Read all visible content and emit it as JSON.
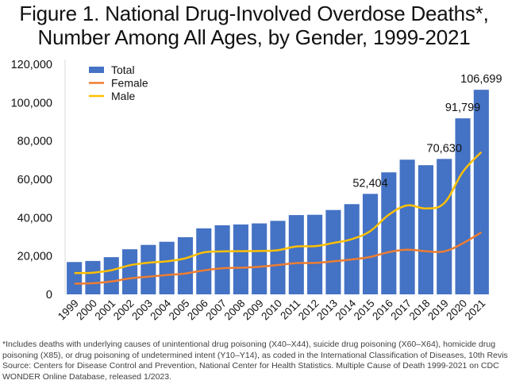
{
  "title_lines": [
    "Figure 1. National Drug-Involved Overdose Deaths*,",
    "Number Among All Ages, by Gender, 1999-2021"
  ],
  "footnote_lines": [
    "*Includes deaths with underlying causes of unintentional drug poisoning (X40–X44), suicide drug poisoning (X60–X64), homicide drug",
    "poisoning (X85), or drug poisoning of undetermined intent (Y10–Y14), as coded in the International Classification of Diseases, 10th Revision.",
    "Source: Centers for Disease Control and Prevention, National Center for Health Statistics. Multiple Cause of Death 1999-2021 on CDC",
    "WONDER Online Database, released 1/2023."
  ],
  "colors": {
    "total": "#4472C4",
    "female": "#ED7D31",
    "male": "#FFC000",
    "axis": "#D9D9D9"
  },
  "chart_data": {
    "type": "bar",
    "title": "Figure 1. National Drug-Involved Overdose Deaths*, Number Among All Ages, by Gender, 1999-2021",
    "xlabel": "",
    "ylabel": "",
    "ylim": [
      0,
      120000
    ],
    "yticks": [
      0,
      20000,
      40000,
      60000,
      80000,
      100000,
      120000
    ],
    "ytick_labels": [
      "0",
      "20,000",
      "40,000",
      "60,000",
      "80,000",
      "100,000",
      "120,000"
    ],
    "grid": false,
    "legend_position": "top-left",
    "categories": [
      "1999",
      "2000",
      "2001",
      "2002",
      "2003",
      "2004",
      "2005",
      "2006",
      "2007",
      "2008",
      "2009",
      "2010",
      "2011",
      "2012",
      "2013",
      "2014",
      "2015",
      "2016",
      "2017",
      "2018",
      "2019",
      "2020",
      "2021"
    ],
    "series": [
      {
        "name": "Total",
        "kind": "bar",
        "values": [
          16849,
          17415,
          19394,
          23518,
          25785,
          27424,
          29813,
          34425,
          36010,
          36450,
          37004,
          38329,
          41340,
          41502,
          43982,
          47055,
          52404,
          63632,
          70237,
          67367,
          70630,
          91799,
          106699
        ]
      },
      {
        "name": "Female",
        "kind": "line",
        "values": [
          5600,
          5800,
          6700,
          8300,
          9200,
          10100,
          10900,
          12500,
          13600,
          13900,
          14400,
          15300,
          16300,
          16400,
          17200,
          18200,
          19500,
          22000,
          23300,
          22500,
          22400,
          26600,
          32300
        ]
      },
      {
        "name": "Male",
        "kind": "line",
        "values": [
          11100,
          11300,
          12600,
          15200,
          16500,
          17200,
          18800,
          21900,
          22400,
          22500,
          22600,
          23000,
          25000,
          25100,
          26800,
          28800,
          33000,
          41500,
          46400,
          44800,
          47600,
          63800,
          74200
        ]
      }
    ],
    "data_labels": [
      {
        "category": "2015",
        "text": "52,404"
      },
      {
        "category": "2019",
        "text": "70,630"
      },
      {
        "category": "2020",
        "text": "91,799"
      },
      {
        "category": "2021",
        "text": "106,699"
      }
    ]
  }
}
